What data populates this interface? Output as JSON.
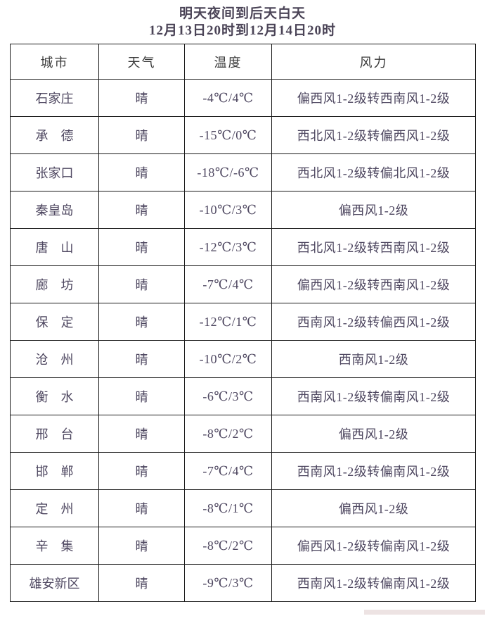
{
  "title": {
    "line1": "明天夜间到后天白天",
    "line2": "12月13日20时到12月14日20时"
  },
  "table": {
    "headers": [
      "城市",
      "天气",
      "温度",
      "风力"
    ],
    "rows": [
      {
        "city": "石家庄",
        "weather": "晴",
        "temp": "-4℃/4℃",
        "wind": "偏西风1-2级转西南风1-2级"
      },
      {
        "city": "承　德",
        "weather": "晴",
        "temp": "-15℃/0℃",
        "wind": "西北风1-2级转偏西风1-2级"
      },
      {
        "city": "张家口",
        "weather": "晴",
        "temp": "-18℃/-6℃",
        "wind": "西北风1-2级转偏北风1-2级"
      },
      {
        "city": "秦皇岛",
        "weather": "晴",
        "temp": "-10℃/3℃",
        "wind": "偏西风1-2级"
      },
      {
        "city": "唐　山",
        "weather": "晴",
        "temp": "-12℃/3℃",
        "wind": "西北风1-2级转西南风1-2级"
      },
      {
        "city": "廊　坊",
        "weather": "晴",
        "temp": "-7℃/4℃",
        "wind": "偏西风1-2级转西南风1-2级"
      },
      {
        "city": "保　定",
        "weather": "晴",
        "temp": "-12℃/1℃",
        "wind": "西南风1-2级转偏西风1-2级"
      },
      {
        "city": "沧　州",
        "weather": "晴",
        "temp": "-10℃/2℃",
        "wind": "西南风1-2级"
      },
      {
        "city": "衡　水",
        "weather": "晴",
        "temp": "-6℃/3℃",
        "wind": "西南风1-2级转偏南风1-2级"
      },
      {
        "city": "邢　台",
        "weather": "晴",
        "temp": "-8℃/2℃",
        "wind": "偏西风1-2级"
      },
      {
        "city": "邯　郸",
        "weather": "晴",
        "temp": "-7℃/4℃",
        "wind": "西南风1-2级转偏南风1-2级"
      },
      {
        "city": "定　州",
        "weather": "晴",
        "temp": "-8℃/1℃",
        "wind": "偏西风1-2级"
      },
      {
        "city": "辛　集",
        "weather": "晴",
        "temp": "-8℃/2℃",
        "wind": "偏西风1-2级转偏南风1-2级"
      },
      {
        "city": "雄安新区",
        "weather": "晴",
        "temp": "-9℃/3℃",
        "wind": "西南风1-2级转偏南风1-2级"
      }
    ]
  },
  "colors": {
    "temperature_text": "#c8342b",
    "body_text": "#4e4760",
    "header_text": "#3a3a3a",
    "title_text": "#4b4457",
    "border": "#1c1c1c",
    "watermark": "#ede3e3"
  }
}
